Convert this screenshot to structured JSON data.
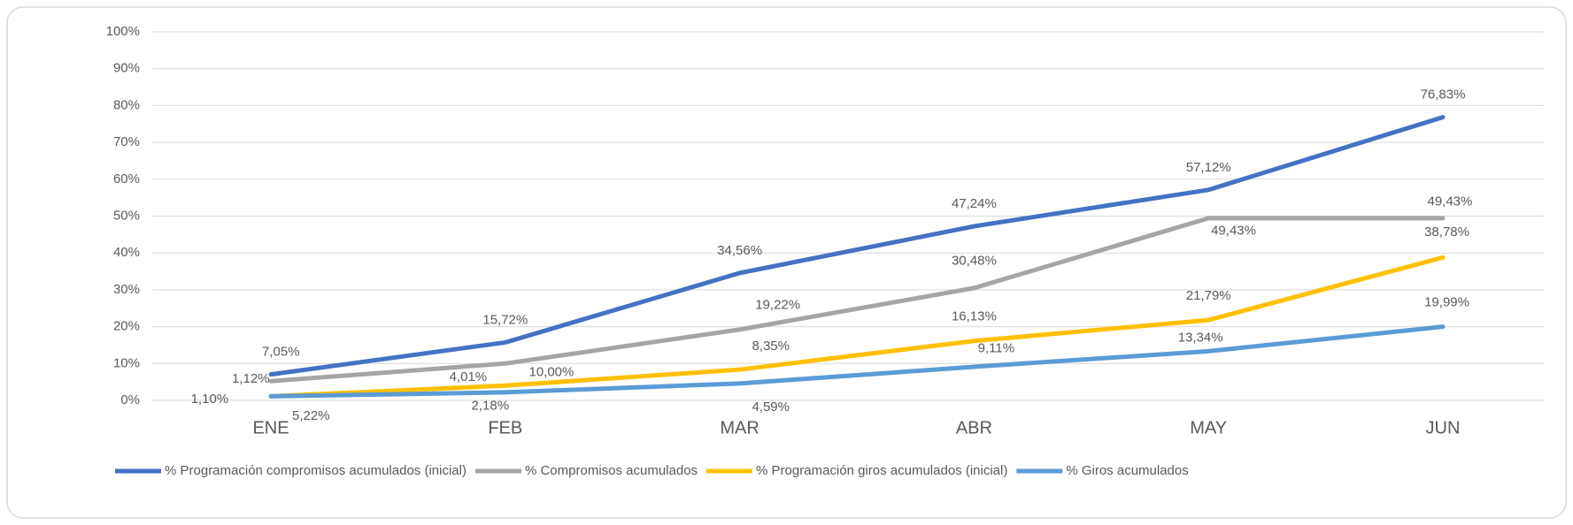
{
  "chart_data": {
    "type": "line",
    "categories": [
      "ENE",
      "FEB",
      "MAR",
      "ABR",
      "MAY",
      "JUN"
    ],
    "series": [
      {
        "name": "% Programación compromisos acumulados (inicial)",
        "color": "#4472c4",
        "values": [
          7.05,
          15.72,
          34.56,
          47.24,
          57.12,
          76.83
        ],
        "value_labels": [
          "7,05%",
          "15,72%",
          "34,56%",
          "47,24%",
          "57,12%",
          "76,83%"
        ]
      },
      {
        "name": "% Compromisos acumulados",
        "color": "#a5a5a5",
        "values": [
          5.22,
          10.0,
          19.22,
          30.48,
          49.43,
          49.43
        ],
        "value_labels": [
          "5,22%",
          "10,00%",
          "19,22%",
          "30,48%",
          "49,43%",
          "49,43%"
        ]
      },
      {
        "name": "% Programación giros acumulados (inicial)",
        "color": "#ffc000",
        "values": [
          1.12,
          4.01,
          8.35,
          16.13,
          21.79,
          38.78
        ],
        "value_labels": [
          "1,12%",
          "4,01%",
          "8,35%",
          "16,13%",
          "21,79%",
          "38,78%"
        ]
      },
      {
        "name": "% Giros acumulados",
        "color": "#5b9bd5",
        "values": [
          1.1,
          2.18,
          4.59,
          9.11,
          13.34,
          19.99
        ],
        "value_labels": [
          "1,10%",
          "2,18%",
          "4,59%",
          "9,11%",
          "13,34%",
          "19,99%"
        ]
      }
    ],
    "ylim": [
      0,
      100
    ],
    "yticks": [
      {
        "value": 0,
        "label": "0%"
      },
      {
        "value": 10,
        "label": "10%"
      },
      {
        "value": 20,
        "label": "20%"
      },
      {
        "value": 30,
        "label": "30%"
      },
      {
        "value": 40,
        "label": "40%"
      },
      {
        "value": 50,
        "label": "50%"
      },
      {
        "value": 60,
        "label": "60%"
      },
      {
        "value": 70,
        "label": "70%"
      },
      {
        "value": 80,
        "label": "80%"
      },
      {
        "value": 90,
        "label": "90%"
      },
      {
        "value": 100,
        "label": "100%"
      }
    ],
    "grid": true,
    "legend": "bottom"
  }
}
